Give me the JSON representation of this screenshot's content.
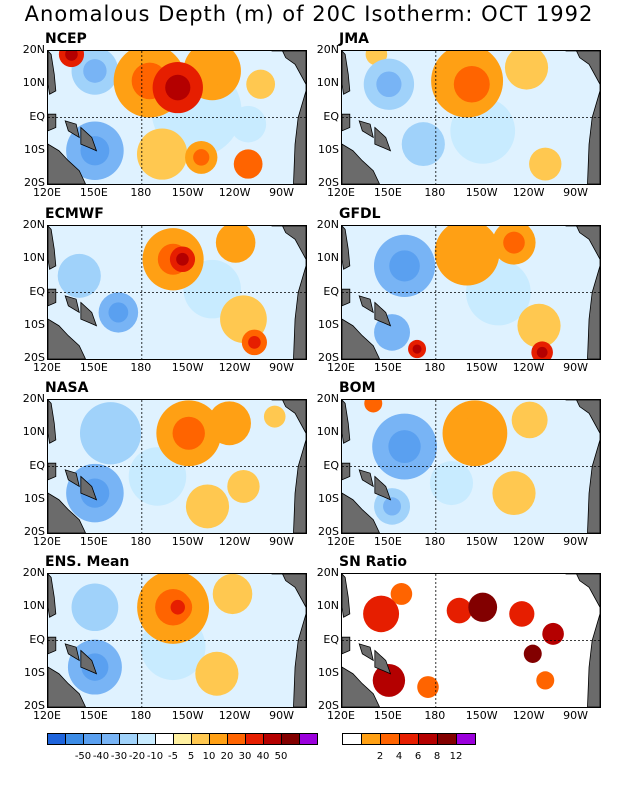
{
  "figure": {
    "title": "Anomalous Depth (m) of 20C Isotherm: OCT 1992"
  },
  "chart_data": [
    {
      "type": "heatmap",
      "title": "NCEP",
      "x_ticks": [
        "120E",
        "150E",
        "180",
        "150W",
        "120W",
        "90W"
      ],
      "y_ticks": [
        "20N",
        "10N",
        "EQ",
        "10S",
        "20S"
      ],
      "features": [
        {
          "lon": 185,
          "lat": 11,
          "r": 20,
          "value": 28
        },
        {
          "lon": 203,
          "lat": 9,
          "r": 14,
          "value": 40
        },
        {
          "lon": 225,
          "lat": 14,
          "r": 16,
          "value": 20
        },
        {
          "lon": 256,
          "lat": 10,
          "r": 8,
          "value": 15
        },
        {
          "lon": 193,
          "lat": -11,
          "r": 14,
          "value": 12
        },
        {
          "lon": 218,
          "lat": -12,
          "r": 9,
          "value": 25
        },
        {
          "lon": 248,
          "lat": -14,
          "r": 8,
          "value": 30
        },
        {
          "lon": 135,
          "lat": 19,
          "r": 7,
          "value": 40
        },
        {
          "lon": 150,
          "lat": -10,
          "r": 16,
          "value": -30
        },
        {
          "lon": 150,
          "lat": 14,
          "r": 13,
          "value": -20
        },
        {
          "lon": 215,
          "lat": 2,
          "r": 25,
          "value": -10
        },
        {
          "lon": 248,
          "lat": -2,
          "r": 10,
          "value": -10
        }
      ]
    },
    {
      "type": "heatmap",
      "title": "JMA",
      "x_ticks": [
        "120E",
        "150E",
        "180",
        "150W",
        "120W",
        "90W"
      ],
      "y_ticks": [
        "20N",
        "10N",
        "EQ",
        "10S",
        "20S"
      ],
      "features": [
        {
          "lon": 200,
          "lat": 11,
          "r": 20,
          "value": 22
        },
        {
          "lon": 203,
          "lat": 10,
          "r": 10,
          "value": 30
        },
        {
          "lon": 238,
          "lat": 15,
          "r": 12,
          "value": 14
        },
        {
          "lon": 250,
          "lat": -14,
          "r": 9,
          "value": 12
        },
        {
          "lon": 150,
          "lat": 10,
          "r": 14,
          "value": -20
        },
        {
          "lon": 172,
          "lat": -8,
          "r": 12,
          "value": -15
        },
        {
          "lon": 210,
          "lat": -4,
          "r": 18,
          "value": -8
        },
        {
          "lon": 142,
          "lat": 19,
          "r": 6,
          "value": 10
        }
      ]
    },
    {
      "type": "heatmap",
      "title": "ECMWF",
      "x_ticks": [
        "120E",
        "150E",
        "180",
        "150W",
        "120W",
        "90W"
      ],
      "y_ticks": [
        "20N",
        "10N",
        "EQ",
        "10S",
        "20S"
      ],
      "features": [
        {
          "lon": 200,
          "lat": 10,
          "r": 17,
          "value": 28
        },
        {
          "lon": 206,
          "lat": 10,
          "r": 7,
          "value": 45
        },
        {
          "lon": 240,
          "lat": 15,
          "r": 11,
          "value": 20
        },
        {
          "lon": 245,
          "lat": -8,
          "r": 13,
          "value": 15
        },
        {
          "lon": 252,
          "lat": -15,
          "r": 7,
          "value": 32
        },
        {
          "lon": 165,
          "lat": -6,
          "r": 11,
          "value": -30
        },
        {
          "lon": 140,
          "lat": 5,
          "r": 12,
          "value": -15
        },
        {
          "lon": 225,
          "lat": 1,
          "r": 16,
          "value": -8
        }
      ]
    },
    {
      "type": "heatmap",
      "title": "GFDL",
      "x_ticks": [
        "120E",
        "150E",
        "180",
        "150W",
        "120W",
        "90W"
      ],
      "y_ticks": [
        "20N",
        "10N",
        "EQ",
        "10S",
        "20S"
      ],
      "features": [
        {
          "lon": 200,
          "lat": 12,
          "r": 18,
          "value": 22
        },
        {
          "lon": 230,
          "lat": 15,
          "r": 12,
          "value": 25
        },
        {
          "lon": 246,
          "lat": -10,
          "r": 12,
          "value": 15
        },
        {
          "lon": 248,
          "lat": -18,
          "r": 6,
          "value": 45
        },
        {
          "lon": 168,
          "lat": -17,
          "r": 5,
          "value": 40
        },
        {
          "lon": 160,
          "lat": 8,
          "r": 17,
          "value": -25
        },
        {
          "lon": 152,
          "lat": -12,
          "r": 10,
          "value": -22
        },
        {
          "lon": 220,
          "lat": 0,
          "r": 18,
          "value": -10
        }
      ]
    },
    {
      "type": "heatmap",
      "title": "NASA",
      "x_ticks": [
        "120E",
        "150E",
        "180",
        "150W",
        "120W",
        "90W"
      ],
      "y_ticks": [
        "20N",
        "10N",
        "EQ",
        "10S",
        "20S"
      ],
      "features": [
        {
          "lon": 210,
          "lat": 10,
          "r": 18,
          "value": 25
        },
        {
          "lon": 236,
          "lat": 13,
          "r": 12,
          "value": 20
        },
        {
          "lon": 265,
          "lat": 15,
          "r": 6,
          "value": 15
        },
        {
          "lon": 222,
          "lat": -12,
          "r": 12,
          "value": 12
        },
        {
          "lon": 245,
          "lat": -6,
          "r": 9,
          "value": 10
        },
        {
          "lon": 150,
          "lat": -8,
          "r": 16,
          "value": -30
        },
        {
          "lon": 160,
          "lat": 10,
          "r": 17,
          "value": -15
        },
        {
          "lon": 190,
          "lat": -3,
          "r": 16,
          "value": -10
        }
      ]
    },
    {
      "type": "heatmap",
      "title": "BOM",
      "x_ticks": [
        "120E",
        "150E",
        "180",
        "150W",
        "120W",
        "90W"
      ],
      "y_ticks": [
        "20N",
        "10N",
        "EQ",
        "10S",
        "20S"
      ],
      "features": [
        {
          "lon": 205,
          "lat": 10,
          "r": 18,
          "value": 22
        },
        {
          "lon": 240,
          "lat": 14,
          "r": 10,
          "value": 18
        },
        {
          "lon": 230,
          "lat": -8,
          "r": 12,
          "value": 14
        },
        {
          "lon": 140,
          "lat": 19,
          "r": 5,
          "value": 30
        },
        {
          "lon": 160,
          "lat": 6,
          "r": 18,
          "value": -25
        },
        {
          "lon": 152,
          "lat": -12,
          "r": 10,
          "value": -20
        },
        {
          "lon": 190,
          "lat": -5,
          "r": 12,
          "value": -8
        }
      ]
    },
    {
      "type": "heatmap",
      "title": "ENS. Mean",
      "x_ticks": [
        "120E",
        "150E",
        "180",
        "150W",
        "120W",
        "90W"
      ],
      "y_ticks": [
        "20N",
        "10N",
        "EQ",
        "10S",
        "20S"
      ],
      "features": [
        {
          "lon": 200,
          "lat": 10,
          "r": 20,
          "value": 24
        },
        {
          "lon": 203,
          "lat": 10,
          "r": 8,
          "value": 35
        },
        {
          "lon": 238,
          "lat": 14,
          "r": 11,
          "value": 15
        },
        {
          "lon": 228,
          "lat": -10,
          "r": 12,
          "value": 10
        },
        {
          "lon": 150,
          "lat": -8,
          "r": 15,
          "value": -25
        },
        {
          "lon": 150,
          "lat": 10,
          "r": 13,
          "value": -15
        },
        {
          "lon": 200,
          "lat": -2,
          "r": 18,
          "value": -6
        }
      ]
    },
    {
      "type": "heatmap",
      "title": "SN Ratio",
      "x_ticks": [
        "120E",
        "150E",
        "180",
        "150W",
        "120W",
        "90W"
      ],
      "y_ticks": [
        "20N",
        "10N",
        "EQ",
        "10S",
        "20S"
      ],
      "features": [
        {
          "lon": 145,
          "lat": 8,
          "r": 10,
          "value": 6
        },
        {
          "lon": 150,
          "lat": -12,
          "r": 9,
          "value": 10
        },
        {
          "lon": 158,
          "lat": 14,
          "r": 6,
          "value": 5
        },
        {
          "lon": 195,
          "lat": 9,
          "r": 7,
          "value": 6
        },
        {
          "lon": 210,
          "lat": 10,
          "r": 8,
          "value": 12
        },
        {
          "lon": 235,
          "lat": 8,
          "r": 7,
          "value": 6
        },
        {
          "lon": 255,
          "lat": 2,
          "r": 6,
          "value": 8
        },
        {
          "lon": 242,
          "lat": -4,
          "r": 5,
          "value": 12
        },
        {
          "lon": 175,
          "lat": -14,
          "r": 6,
          "value": 4
        },
        {
          "lon": 250,
          "lat": -12,
          "r": 5,
          "value": 4
        }
      ]
    }
  ],
  "anomaly_colorbar": {
    "labels": [
      "-50",
      "-40",
      "-30",
      "-20",
      "-10",
      "-5",
      "5",
      "10",
      "20",
      "30",
      "40",
      "50"
    ],
    "colors": [
      "#1e64dc",
      "#3c8ce6",
      "#5aa0f0",
      "#78b4f5",
      "#a0d2fa",
      "#c8ebff",
      "#ffffff",
      "#fff0a0",
      "#ffc850",
      "#ffa014",
      "#ff6400",
      "#e61e00",
      "#b40000",
      "#820000",
      "#9b00dc"
    ]
  },
  "sn_colorbar": {
    "labels": [
      "2",
      "4",
      "6",
      "8",
      "12"
    ],
    "colors": [
      "#ffffff",
      "#ffa014",
      "#ff6400",
      "#e61e00",
      "#b40000",
      "#820000",
      "#9b00dc"
    ]
  }
}
